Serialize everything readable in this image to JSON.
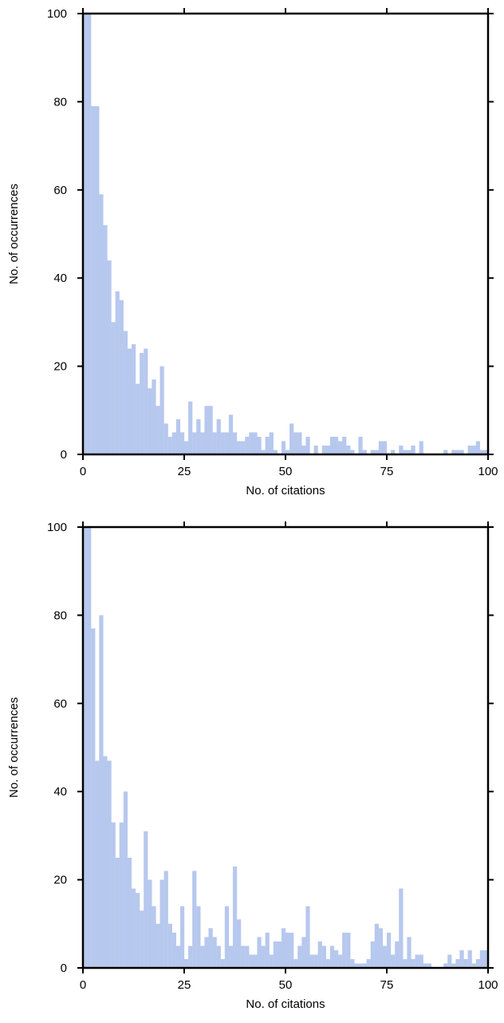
{
  "chart_data": [
    {
      "type": "bar",
      "title": "",
      "xlabel": "No. of citations",
      "ylabel": "No. of occurrences",
      "xlim": [
        0,
        100
      ],
      "ylim": [
        0,
        100
      ],
      "xticks": [
        "0",
        "25",
        "50",
        "75",
        "100"
      ],
      "yticks": [
        "0",
        "20",
        "40",
        "60",
        "80",
        "100"
      ],
      "bar_color": "#b7c8ee",
      "bin_start": 0,
      "bin_width": 1,
      "values": [
        100,
        100,
        79,
        79,
        59,
        52,
        44,
        30,
        37,
        35,
        28,
        24,
        25,
        16,
        23,
        24,
        15,
        17,
        11,
        20,
        7,
        4,
        5,
        8,
        5,
        3,
        12,
        5,
        8,
        5,
        11,
        11,
        5,
        8,
        5,
        5,
        9,
        5,
        3,
        3,
        4,
        5,
        5,
        4,
        1,
        4,
        5,
        1,
        0,
        3,
        1,
        7,
        5,
        5,
        2,
        4,
        0,
        2,
        0,
        2,
        2,
        4,
        4,
        3,
        4,
        2,
        1,
        0,
        4,
        1,
        0,
        1,
        1,
        3,
        3,
        0,
        1,
        0,
        2,
        1,
        1,
        2,
        0,
        3,
        0,
        0,
        0,
        0,
        0,
        1,
        0,
        1,
        1,
        1,
        0,
        2,
        2,
        3,
        1,
        1
      ]
    },
    {
      "type": "bar",
      "title": "",
      "xlabel": "No. of citations",
      "ylabel": "No. of occurrences",
      "xlim": [
        0,
        100
      ],
      "ylim": [
        0,
        100
      ],
      "xticks": [
        "0",
        "25",
        "50",
        "75",
        "100"
      ],
      "yticks": [
        "0",
        "20",
        "40",
        "60",
        "80",
        "100"
      ],
      "bar_color": "#b7c8ee",
      "bin_start": 0,
      "bin_width": 1,
      "values": [
        100,
        100,
        77,
        47,
        80,
        48,
        47,
        33,
        25,
        33,
        40,
        25,
        18,
        17,
        13,
        31,
        20,
        14,
        10,
        20,
        22,
        10,
        8,
        5,
        14,
        2,
        5,
        22,
        14,
        5,
        7,
        9,
        7,
        5,
        2,
        14,
        5,
        23,
        11,
        5,
        5,
        3,
        3,
        7,
        5,
        8,
        3,
        6,
        6,
        9,
        8,
        8,
        2,
        5,
        7,
        14,
        3,
        3,
        6,
        5,
        2,
        5,
        4,
        3,
        8,
        8,
        2,
        1,
        1,
        1,
        2,
        6,
        10,
        9,
        5,
        8,
        3,
        6,
        18,
        2,
        7,
        2,
        3,
        3,
        1,
        1,
        0,
        0,
        0,
        1,
        3,
        1,
        2,
        4,
        2,
        4,
        1,
        2,
        4,
        4
      ]
    }
  ]
}
